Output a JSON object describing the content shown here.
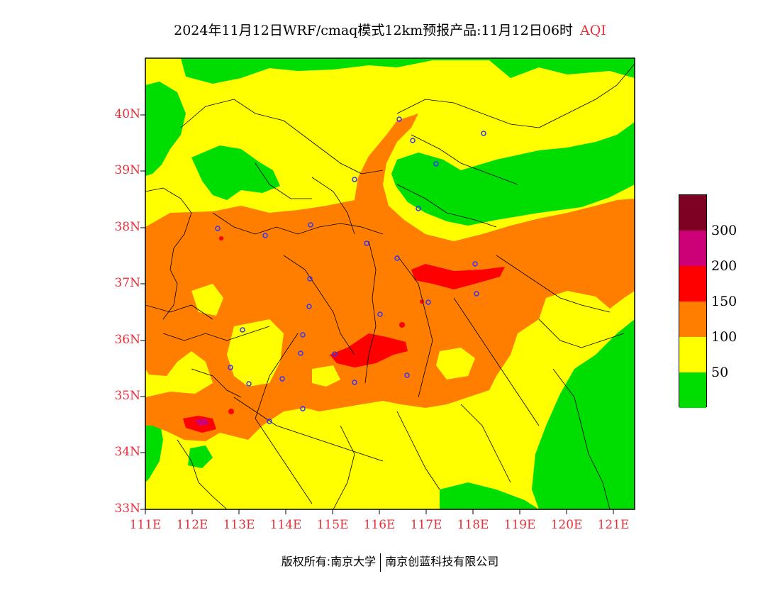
{
  "title": {
    "main": "2024年11月12日WRF/cmaq模式12km预报产品:11月12日06时",
    "variable": "AQI"
  },
  "map": {
    "lat_labels": [
      "40N",
      "39N",
      "38N",
      "37N",
      "36N",
      "35N",
      "34N",
      "33N"
    ],
    "lon_labels": [
      "111E",
      "112E",
      "113E",
      "114E",
      "115E",
      "116E",
      "117E",
      "118E",
      "119E",
      "120E",
      "121E"
    ],
    "lat_range": [
      33,
      41
    ],
    "lon_range": [
      111,
      121.5
    ],
    "colors": {
      "good": "#00dd00",
      "moderate": "#ffff00",
      "unhealthy_sensitive": "#ff7e00",
      "unhealthy": "#ff0000",
      "very_unhealthy": "#cc0077",
      "hazardous": "#7e0023",
      "station": "#3333ff",
      "boundary": "#000000"
    }
  },
  "legend": {
    "ticks": [
      "300",
      "200",
      "150",
      "100",
      "50"
    ],
    "colors": [
      "#7e0023",
      "#cc0077",
      "#ff0000",
      "#ff7e00",
      "#ffff00",
      "#00dd00"
    ]
  },
  "footer": {
    "left": "版权所有:南京大学",
    "right": "南京创蓝科技有限公司"
  }
}
